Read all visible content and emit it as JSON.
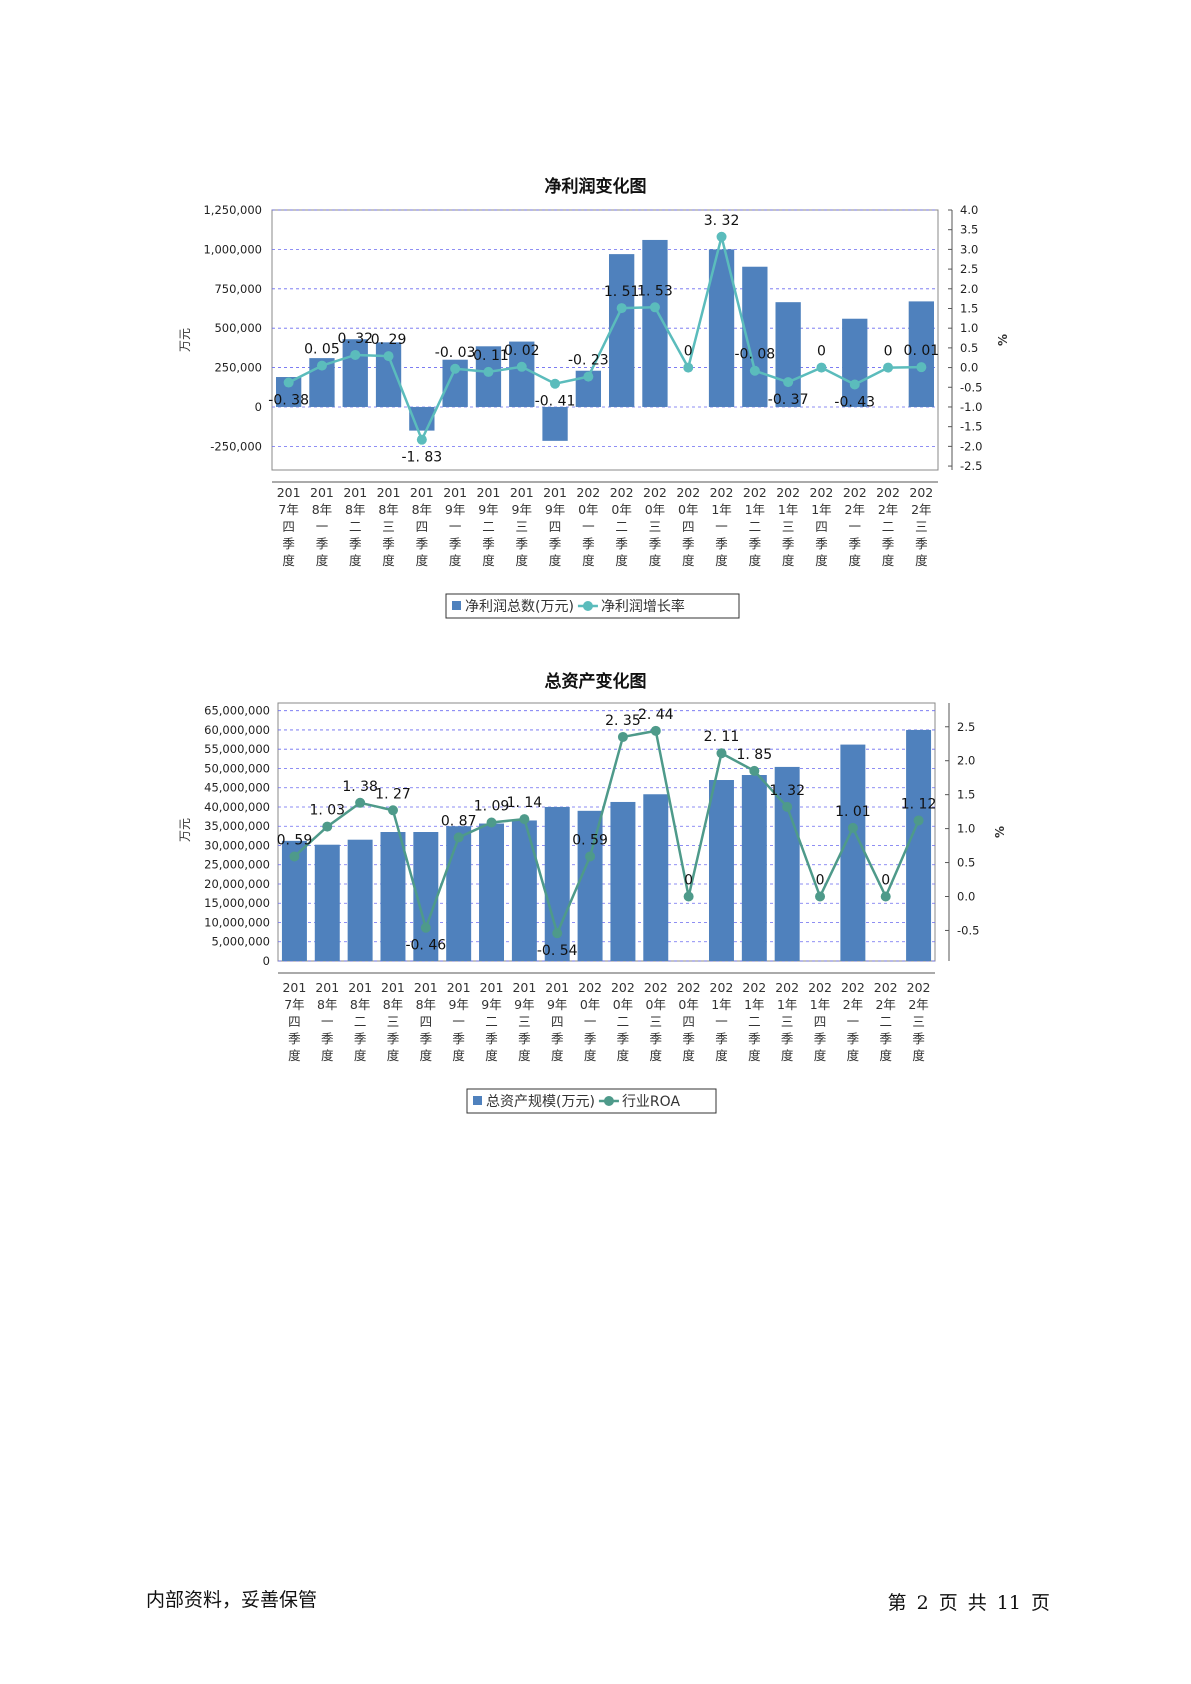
{
  "chart_data": [
    {
      "type": "bar",
      "title": "净利润变化图",
      "ylabel": "万元",
      "y2label": "%",
      "ylim": [
        -400000,
        1250000
      ],
      "y2lim": [
        -2.6,
        4.0
      ],
      "yticks": [
        "1,250,000",
        "1,000,000",
        "750,000",
        "500,000",
        "250,000",
        "0",
        "-250,000"
      ],
      "yticks_values": [
        1250000,
        1000000,
        750000,
        500000,
        250000,
        0,
        -250000
      ],
      "y2ticks": [
        "4.0",
        "3.5",
        "3.0",
        "2.5",
        "2.0",
        "1.5",
        "1.0",
        "0.5",
        "0.0",
        "-0.5",
        "-1.0",
        "-1.5",
        "-2.0",
        "-2.5"
      ],
      "y2ticks_values": [
        4.0,
        3.5,
        3.0,
        2.5,
        2.0,
        1.5,
        1.0,
        0.5,
        0.0,
        -0.5,
        -1.0,
        -1.5,
        -2.0,
        -2.5
      ],
      "categories": [
        [
          "201",
          "7年",
          "四",
          "季",
          "度"
        ],
        [
          "201",
          "8年",
          "一",
          "季",
          "度"
        ],
        [
          "201",
          "8年",
          "二",
          "季",
          "度"
        ],
        [
          "201",
          "8年",
          "三",
          "季",
          "度"
        ],
        [
          "201",
          "8年",
          "四",
          "季",
          "度"
        ],
        [
          "201",
          "9年",
          "一",
          "季",
          "度"
        ],
        [
          "201",
          "9年",
          "二",
          "季",
          "度"
        ],
        [
          "201",
          "9年",
          "三",
          "季",
          "度"
        ],
        [
          "201",
          "9年",
          "四",
          "季",
          "度"
        ],
        [
          "202",
          "0年",
          "一",
          "季",
          "度"
        ],
        [
          "202",
          "0年",
          "二",
          "季",
          "度"
        ],
        [
          "202",
          "0年",
          "三",
          "季",
          "度"
        ],
        [
          "202",
          "0年",
          "四",
          "季",
          "度"
        ],
        [
          "202",
          "1年",
          "一",
          "季",
          "度"
        ],
        [
          "202",
          "1年",
          "二",
          "季",
          "度"
        ],
        [
          "202",
          "1年",
          "三",
          "季",
          "度"
        ],
        [
          "202",
          "1年",
          "四",
          "季",
          "度"
        ],
        [
          "202",
          "2年",
          "一",
          "季",
          "度"
        ],
        [
          "202",
          "2年",
          "二",
          "季",
          "度"
        ],
        [
          "202",
          "2年",
          "三",
          "季",
          "度"
        ]
      ],
      "series": [
        {
          "name": "净利润总数(万元)",
          "kind": "bar",
          "color": "#4f81bd",
          "values": [
            190000,
            310000,
            430000,
            410000,
            -150000,
            300000,
            385000,
            415000,
            -215000,
            230000,
            970000,
            1060000,
            0,
            1000000,
            890000,
            665000,
            0,
            560000,
            0,
            670000
          ]
        },
        {
          "name": "净利润增长率",
          "kind": "line",
          "color": "#5bbcbc",
          "values": [
            -0.38,
            0.05,
            0.32,
            0.29,
            -1.83,
            -0.03,
            -0.11,
            0.02,
            -0.41,
            -0.23,
            1.51,
            1.53,
            0,
            3.32,
            -0.08,
            -0.37,
            0,
            -0.43,
            0,
            0.01
          ],
          "labels": [
            "-0. 38",
            "0. 05",
            "0. 32",
            "0. 29",
            "-1. 83",
            "-0. 03",
            "-0. 11",
            "0. 02",
            "-0. 41",
            "-0. 23",
            "1. 51",
            "1. 53",
            "0",
            "3. 32",
            "-0. 08",
            "-0. 37",
            "0",
            "-0. 43",
            "0",
            "0. 01"
          ]
        }
      ]
    },
    {
      "type": "bar",
      "title": "总资产变化图",
      "ylabel": "万元",
      "y2label": "%",
      "ylim": [
        0,
        67000000
      ],
      "y2lim": [
        -0.95,
        2.85
      ],
      "yticks": [
        "65,000,000",
        "60,000,000",
        "55,000,000",
        "50,000,000",
        "45,000,000",
        "40,000,000",
        "35,000,000",
        "30,000,000",
        "25,000,000",
        "20,000,000",
        "15,000,000",
        "10,000,000",
        "5,000,000",
        "0"
      ],
      "yticks_values": [
        65000000,
        60000000,
        55000000,
        50000000,
        45000000,
        40000000,
        35000000,
        30000000,
        25000000,
        20000000,
        15000000,
        10000000,
        5000000,
        0
      ],
      "y2ticks": [
        "2.5",
        "2.0",
        "1.5",
        "1.0",
        "0.5",
        "0.0",
        "-0.5"
      ],
      "y2ticks_values": [
        2.5,
        2.0,
        1.5,
        1.0,
        0.5,
        0.0,
        -0.5
      ],
      "categories": [
        [
          "201",
          "7年",
          "四",
          "季",
          "度"
        ],
        [
          "201",
          "8年",
          "一",
          "季",
          "度"
        ],
        [
          "201",
          "8年",
          "二",
          "季",
          "度"
        ],
        [
          "201",
          "8年",
          "三",
          "季",
          "度"
        ],
        [
          "201",
          "8年",
          "四",
          "季",
          "度"
        ],
        [
          "201",
          "9年",
          "一",
          "季",
          "度"
        ],
        [
          "201",
          "9年",
          "二",
          "季",
          "度"
        ],
        [
          "201",
          "9年",
          "三",
          "季",
          "度"
        ],
        [
          "201",
          "9年",
          "四",
          "季",
          "度"
        ],
        [
          "202",
          "0年",
          "一",
          "季",
          "度"
        ],
        [
          "202",
          "0年",
          "二",
          "季",
          "度"
        ],
        [
          "202",
          "0年",
          "三",
          "季",
          "度"
        ],
        [
          "202",
          "0年",
          "四",
          "季",
          "度"
        ],
        [
          "202",
          "1年",
          "一",
          "季",
          "度"
        ],
        [
          "202",
          "1年",
          "二",
          "季",
          "度"
        ],
        [
          "202",
          "1年",
          "三",
          "季",
          "度"
        ],
        [
          "202",
          "1年",
          "四",
          "季",
          "度"
        ],
        [
          "202",
          "2年",
          "一",
          "季",
          "度"
        ],
        [
          "202",
          "2年",
          "二",
          "季",
          "度"
        ],
        [
          "202",
          "2年",
          "三",
          "季",
          "度"
        ]
      ],
      "series": [
        {
          "name": "总资产规模(万元)",
          "kind": "bar",
          "color": "#4f81bd",
          "values": [
            31200000,
            30200000,
            31500000,
            33500000,
            33500000,
            35000000,
            35700000,
            36500000,
            40000000,
            39000000,
            41300000,
            43300000,
            0,
            47000000,
            48300000,
            50400000,
            0,
            56200000,
            0,
            60000000
          ]
        },
        {
          "name": "行业ROA",
          "kind": "line",
          "color": "#4e9a8a",
          "values": [
            0.59,
            1.03,
            1.38,
            1.27,
            -0.46,
            0.87,
            1.09,
            1.14,
            -0.54,
            0.59,
            2.35,
            2.44,
            0,
            2.11,
            1.85,
            1.32,
            0,
            1.01,
            0,
            1.12
          ],
          "labels": [
            "0. 59",
            "1. 03",
            "1. 38",
            "1. 27",
            "-0. 46",
            "0. 87",
            "1. 09",
            "1. 14",
            "-0. 54",
            "0. 59",
            "2. 35",
            "2. 44",
            "0",
            "2. 11",
            "1. 85",
            "1. 32",
            "0",
            "1. 01",
            "0",
            "1. 12"
          ]
        }
      ]
    }
  ],
  "footer": {
    "left": "内部资料，妥善保管",
    "right": "第 2 页  共 11 页"
  }
}
